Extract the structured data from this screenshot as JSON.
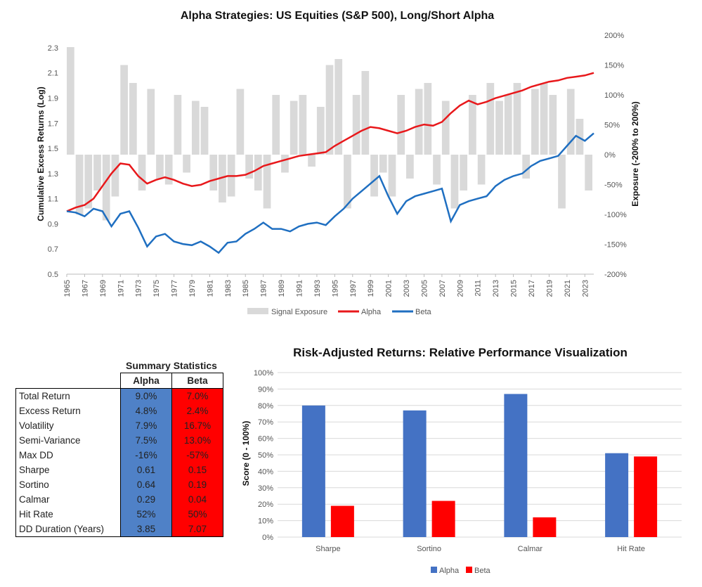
{
  "chart_data": [
    {
      "type": "line",
      "title": "Alpha Strategies: US Equities (S&P 500), Long/Short Alpha",
      "ylabel": "Cumulative Excess Returns (Log)",
      "y2label": "Exposure (-200% to 200%)",
      "ylim": [
        0.5,
        2.4
      ],
      "yticks": [
        "0.5",
        "0.7",
        "0.9",
        "1.1",
        "1.3",
        "1.5",
        "1.7",
        "1.9",
        "2.1",
        "2.3"
      ],
      "y2lim": [
        -200,
        200
      ],
      "y2ticks": [
        "-200%",
        "-150%",
        "-100%",
        "-50%",
        "0%",
        "50%",
        "100%",
        "150%",
        "200%"
      ],
      "xlim": [
        1965,
        2024
      ],
      "xticks": [
        "1965",
        "1967",
        "1969",
        "1971",
        "1973",
        "1975",
        "1977",
        "1979",
        "1981",
        "1983",
        "1985",
        "1987",
        "1989",
        "1991",
        "1993",
        "1995",
        "1997",
        "1999",
        "2001",
        "2003",
        "2005",
        "2007",
        "2009",
        "2011",
        "2013",
        "2015",
        "2017",
        "2019",
        "2021",
        "2023"
      ],
      "legend": [
        "Signal Exposure",
        "Alpha",
        "Beta"
      ],
      "colors": {
        "exposure": "#d9d9d9",
        "alpha": "#e8181b",
        "beta": "#1f6fc1"
      },
      "series": [
        {
          "name": "Alpha",
          "x": [
            1965,
            1966,
            1967,
            1968,
            1969,
            1970,
            1971,
            1972,
            1973,
            1974,
            1975,
            1976,
            1977,
            1978,
            1979,
            1980,
            1981,
            1982,
            1983,
            1984,
            1985,
            1986,
            1987,
            1988,
            1989,
            1990,
            1991,
            1992,
            1993,
            1994,
            1995,
            1996,
            1997,
            1998,
            1999,
            2000,
            2001,
            2002,
            2003,
            2004,
            2005,
            2006,
            2007,
            2008,
            2009,
            2010,
            2011,
            2012,
            2013,
            2014,
            2015,
            2016,
            2017,
            2018,
            2019,
            2020,
            2021,
            2022,
            2023,
            2024
          ],
          "values": [
            1.0,
            1.03,
            1.05,
            1.1,
            1.2,
            1.3,
            1.38,
            1.37,
            1.28,
            1.22,
            1.25,
            1.27,
            1.25,
            1.22,
            1.2,
            1.21,
            1.24,
            1.26,
            1.28,
            1.28,
            1.29,
            1.32,
            1.36,
            1.38,
            1.4,
            1.42,
            1.44,
            1.45,
            1.46,
            1.47,
            1.52,
            1.56,
            1.6,
            1.64,
            1.67,
            1.66,
            1.64,
            1.62,
            1.64,
            1.67,
            1.69,
            1.68,
            1.71,
            1.78,
            1.84,
            1.88,
            1.85,
            1.87,
            1.9,
            1.92,
            1.94,
            1.96,
            1.99,
            2.01,
            2.03,
            2.04,
            2.06,
            2.07,
            2.08,
            2.1
          ]
        },
        {
          "name": "Beta",
          "x": [
            1965,
            1966,
            1967,
            1968,
            1969,
            1970,
            1971,
            1972,
            1973,
            1974,
            1975,
            1976,
            1977,
            1978,
            1979,
            1980,
            1981,
            1982,
            1983,
            1984,
            1985,
            1986,
            1987,
            1988,
            1989,
            1990,
            1991,
            1992,
            1993,
            1994,
            1995,
            1996,
            1997,
            1998,
            1999,
            2000,
            2001,
            2002,
            2003,
            2004,
            2005,
            2006,
            2007,
            2008,
            2009,
            2010,
            2011,
            2012,
            2013,
            2014,
            2015,
            2016,
            2017,
            2018,
            2019,
            2020,
            2021,
            2022,
            2023,
            2024
          ],
          "values": [
            1.0,
            0.99,
            0.96,
            1.02,
            1.0,
            0.88,
            0.98,
            1.0,
            0.87,
            0.72,
            0.8,
            0.82,
            0.76,
            0.74,
            0.73,
            0.76,
            0.72,
            0.67,
            0.75,
            0.76,
            0.82,
            0.86,
            0.91,
            0.86,
            0.86,
            0.84,
            0.88,
            0.9,
            0.91,
            0.89,
            0.96,
            1.02,
            1.1,
            1.16,
            1.22,
            1.28,
            1.12,
            0.98,
            1.08,
            1.12,
            1.14,
            1.16,
            1.18,
            0.92,
            1.05,
            1.08,
            1.1,
            1.12,
            1.2,
            1.25,
            1.28,
            1.3,
            1.36,
            1.4,
            1.42,
            1.44,
            1.52,
            1.6,
            1.56,
            1.62
          ]
        },
        {
          "name": "Signal Exposure",
          "x": [
            1965,
            1966,
            1967,
            1968,
            1969,
            1970,
            1971,
            1972,
            1973,
            1974,
            1975,
            1976,
            1977,
            1978,
            1979,
            1980,
            1981,
            1982,
            1983,
            1984,
            1985,
            1986,
            1987,
            1988,
            1989,
            1990,
            1991,
            1992,
            1993,
            1994,
            1995,
            1996,
            1997,
            1998,
            1999,
            2000,
            2001,
            2002,
            2003,
            2004,
            2005,
            2006,
            2007,
            2008,
            2009,
            2010,
            2011,
            2012,
            2013,
            2014,
            2015,
            2016,
            2017,
            2018,
            2019,
            2020,
            2021,
            2022,
            2023,
            2024
          ],
          "values": [
            180,
            -100,
            -90,
            -60,
            -110,
            -70,
            150,
            120,
            -60,
            110,
            -40,
            -50,
            100,
            -30,
            90,
            80,
            -60,
            -80,
            -70,
            110,
            -40,
            -60,
            -90,
            100,
            -30,
            90,
            100,
            -20,
            80,
            150,
            160,
            -90,
            100,
            140,
            -70,
            -30,
            -70,
            100,
            -40,
            110,
            120,
            -50,
            90,
            -90,
            -60,
            100,
            -50,
            120,
            90,
            100,
            120,
            -40,
            110,
            120,
            100,
            -90,
            110,
            60,
            -60,
            -100
          ]
        }
      ]
    },
    {
      "type": "bar",
      "title": "Risk-Adjusted Returns: Relative Performance Visualization",
      "ylabel": "Score (0 - 100%)",
      "ylim": [
        0,
        100
      ],
      "yticks": [
        "0%",
        "10%",
        "20%",
        "30%",
        "40%",
        "50%",
        "60%",
        "70%",
        "80%",
        "90%",
        "100%"
      ],
      "categories": [
        "Sharpe",
        "Sortino",
        "Calmar",
        "Hit Rate"
      ],
      "legend": [
        "Alpha",
        "Beta"
      ],
      "colors": {
        "alpha": "#4472c4",
        "beta": "#ff0000"
      },
      "series": [
        {
          "name": "Alpha",
          "values": [
            80,
            77,
            87,
            51
          ]
        },
        {
          "name": "Beta",
          "values": [
            19,
            22,
            12,
            49
          ]
        }
      ]
    }
  ],
  "summary": {
    "title": "Summary Statistics",
    "col_alpha": "Alpha",
    "col_beta": "Beta",
    "rows": [
      {
        "label": "Total Return",
        "alpha": "9.0%",
        "beta": "7.0%"
      },
      {
        "label": "Excess Return",
        "alpha": "4.8%",
        "beta": "2.4%"
      },
      {
        "label": "Volatility",
        "alpha": "7.9%",
        "beta": "16.7%"
      },
      {
        "label": "Semi-Variance",
        "alpha": "7.5%",
        "beta": "13.0%"
      },
      {
        "label": "Max DD",
        "alpha": "-16%",
        "beta": "-57%"
      },
      {
        "label": "Sharpe",
        "alpha": "0.61",
        "beta": "0.15"
      },
      {
        "label": "Sortino",
        "alpha": "0.64",
        "beta": "0.19"
      },
      {
        "label": "Calmar",
        "alpha": "0.29",
        "beta": "0.04"
      },
      {
        "label": "Hit Rate",
        "alpha": "52%",
        "beta": "50%"
      },
      {
        "label": "DD Duration (Years)",
        "alpha": "3.85",
        "beta": "7.07"
      }
    ]
  }
}
